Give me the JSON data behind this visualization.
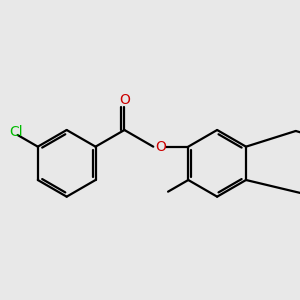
{
  "background_color": "#e8e8e8",
  "bond_color": "#000000",
  "cl_color": "#00bb00",
  "o_color": "#cc0000",
  "line_width": 1.6,
  "font_size_atom": 10,
  "figsize": [
    3.0,
    3.0
  ],
  "dpi": 100,
  "xlim": [
    -3.8,
    5.2
  ],
  "ylim": [
    -3.0,
    3.0
  ]
}
